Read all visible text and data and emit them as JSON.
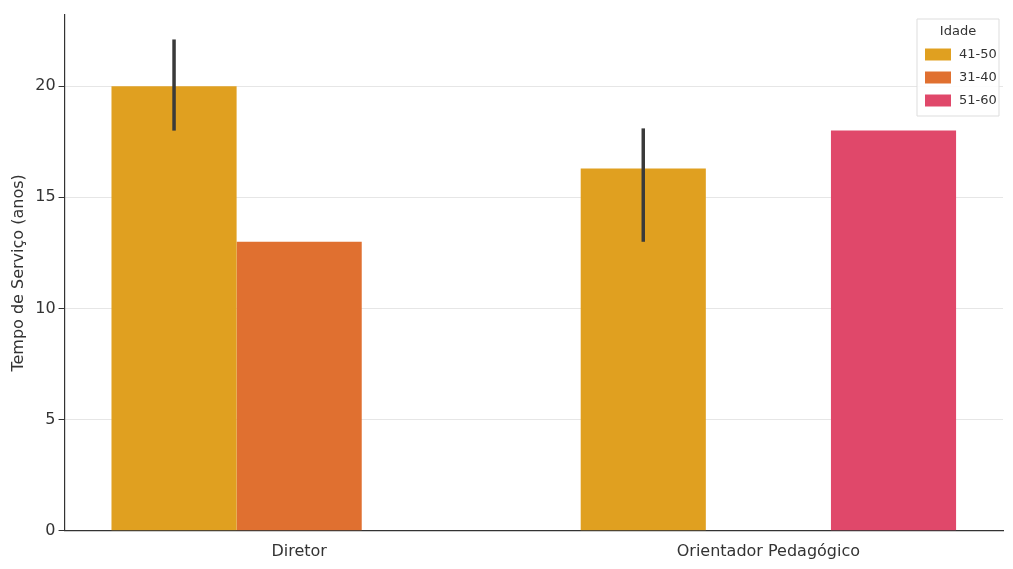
{
  "chart_data": {
    "type": "bar",
    "ylabel": "Tempo de Serviço (anos)",
    "legend_title": "Idade",
    "categories": [
      "Diretor",
      "Orientador Pedagógico"
    ],
    "series": [
      {
        "name": "41-50",
        "color": "#e0a020",
        "values": [
          20,
          16.3
        ],
        "errors": [
          [
            18,
            22.1
          ],
          [
            13,
            18.1
          ]
        ]
      },
      {
        "name": "31-40",
        "color": "#e07030",
        "values": [
          13,
          null
        ]
      },
      {
        "name": "51-60",
        "color": "#e0486a",
        "values": [
          null,
          18
        ]
      }
    ],
    "ylim": [
      0,
      23.2
    ],
    "yticks": [
      0,
      5,
      10,
      15,
      20
    ],
    "grid": "y",
    "legend": "top right"
  }
}
